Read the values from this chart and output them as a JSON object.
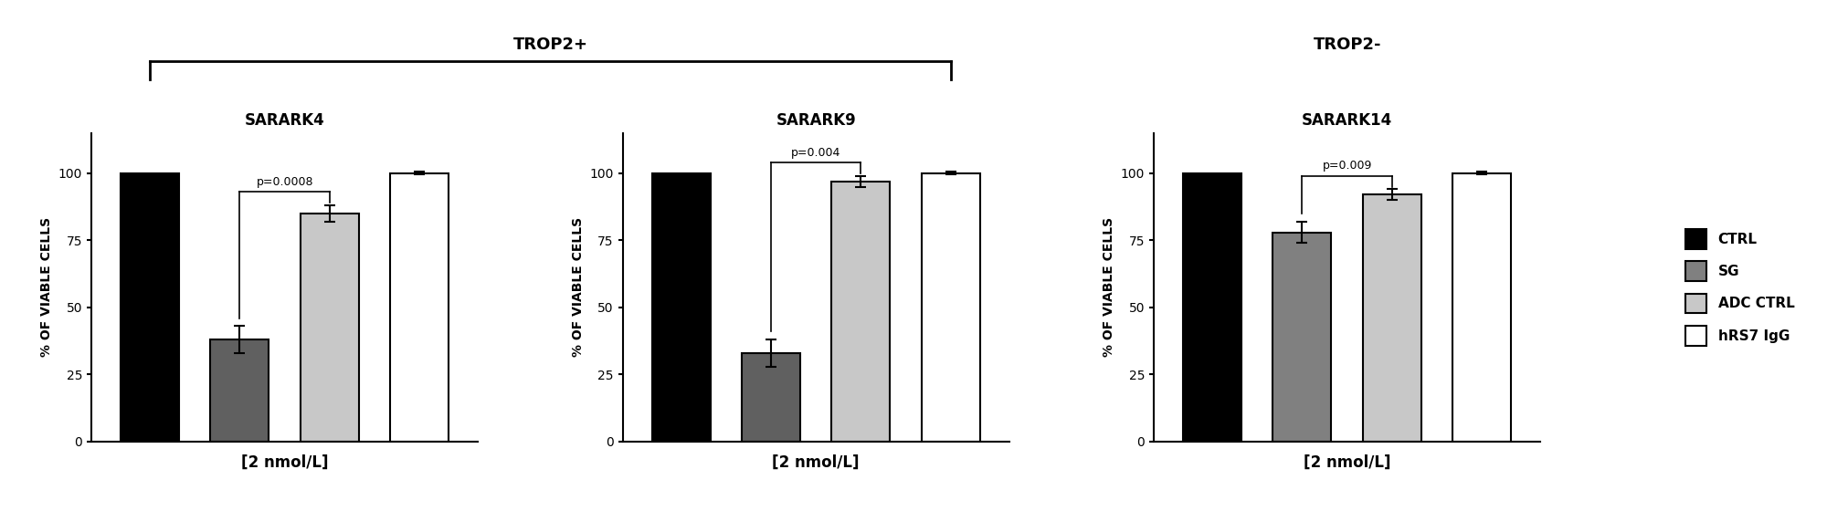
{
  "panels": [
    {
      "title": "SARARK4",
      "xlabel": "[2 nmol/L]",
      "ylabel": "% OF VIABLE CELLS",
      "bars": [
        {
          "label": "CTRL",
          "value": 100,
          "error": 0,
          "color": "#000000",
          "edgecolor": "#000000"
        },
        {
          "label": "SG",
          "value": 38,
          "error": 5,
          "color": "#606060",
          "edgecolor": "#000000"
        },
        {
          "label": "ADC CTRL",
          "value": 85,
          "error": 3,
          "color": "#c8c8c8",
          "edgecolor": "#000000"
        },
        {
          "label": "hRS7 IgG",
          "value": 100,
          "error": 0.5,
          "color": "#ffffff",
          "edgecolor": "#000000"
        }
      ],
      "pvalue": "p=0.0008",
      "ylim": [
        0,
        115
      ]
    },
    {
      "title": "SARARK9",
      "xlabel": "[2 nmol/L]",
      "ylabel": "% OF VIABLE CELLS",
      "bars": [
        {
          "label": "CTRL",
          "value": 100,
          "error": 0,
          "color": "#000000",
          "edgecolor": "#000000"
        },
        {
          "label": "SG",
          "value": 33,
          "error": 5,
          "color": "#606060",
          "edgecolor": "#000000"
        },
        {
          "label": "ADC CTRL",
          "value": 97,
          "error": 2,
          "color": "#c8c8c8",
          "edgecolor": "#000000"
        },
        {
          "label": "hRS7 IgG",
          "value": 100,
          "error": 0.5,
          "color": "#ffffff",
          "edgecolor": "#000000"
        }
      ],
      "pvalue": "p=0.004",
      "ylim": [
        0,
        115
      ]
    },
    {
      "title": "SARARK14",
      "xlabel": "[2 nmol/L]",
      "ylabel": "% OF VIABLE CELLS",
      "bars": [
        {
          "label": "CTRL",
          "value": 100,
          "error": 0,
          "color": "#000000",
          "edgecolor": "#000000"
        },
        {
          "label": "SG",
          "value": 78,
          "error": 4,
          "color": "#808080",
          "edgecolor": "#000000"
        },
        {
          "label": "ADC CTRL",
          "value": 92,
          "error": 2,
          "color": "#c8c8c8",
          "edgecolor": "#000000"
        },
        {
          "label": "hRS7 IgG",
          "value": 100,
          "error": 0.5,
          "color": "#ffffff",
          "edgecolor": "#000000"
        }
      ],
      "pvalue": "p=0.009",
      "ylim": [
        0,
        115
      ]
    }
  ],
  "legend_labels": [
    "CTRL",
    "SG",
    "ADC CTRL",
    "hRS7 IgG"
  ],
  "legend_colors": [
    "#000000",
    "#808080",
    "#c8c8c8",
    "#ffffff"
  ],
  "legend_edgecolors": [
    "#000000",
    "#000000",
    "#000000",
    "#000000"
  ],
  "background_color": "#ffffff",
  "trop2plus_label": "TROP2+",
  "trop2minus_label": "TROP2-",
  "title_fontsize": 12,
  "axis_label_fontsize": 10,
  "tick_fontsize": 10,
  "legend_fontsize": 11,
  "pval_fontsize": 9,
  "group_label_fontsize": 13
}
